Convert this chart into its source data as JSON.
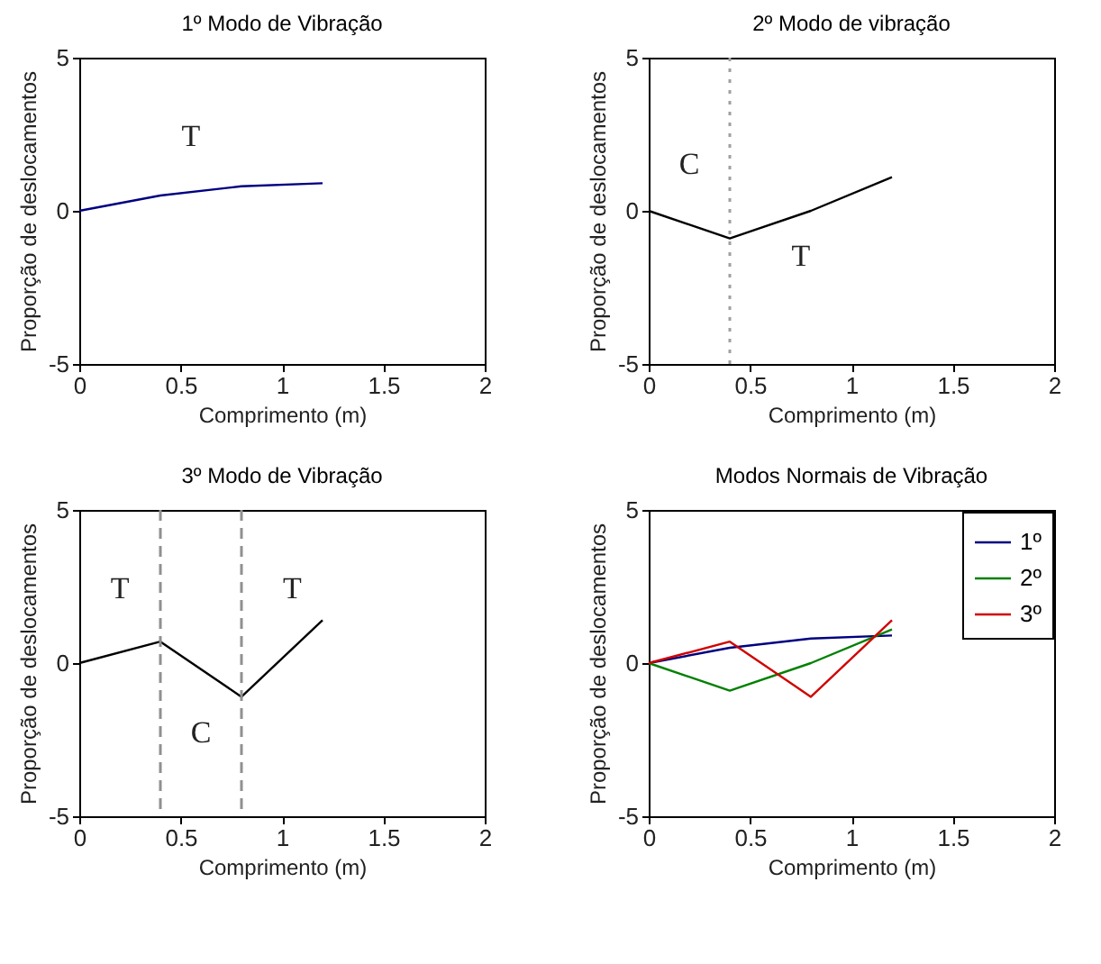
{
  "chart_data": [
    {
      "type": "line",
      "title": "1º Modo de Vibração",
      "xlabel": "Comprimento (m)",
      "ylabel": "Proporção de deslocamentos",
      "x": [
        0,
        0.4,
        0.8,
        1.2
      ],
      "series": [
        {
          "color": "#000080",
          "values": [
            0,
            0.5,
            0.8,
            0.9
          ]
        }
      ],
      "xlim": [
        0,
        2
      ],
      "xticks": [
        0,
        0.5,
        1,
        1.5,
        2
      ],
      "ylim": [
        -5,
        5
      ],
      "yticks": [
        -5,
        0,
        5
      ],
      "grid": false,
      "line_style": "solid",
      "annotations": [
        "T"
      ]
    },
    {
      "type": "line",
      "title": "2º Modo de vibração",
      "xlabel": "Comprimento (m)",
      "ylabel": "Proporção de deslocamentos",
      "x": [
        0,
        0.4,
        0.8,
        1.2
      ],
      "series": [
        {
          "color": "#000000",
          "values": [
            0,
            -0.9,
            0,
            1.1
          ]
        }
      ],
      "xlim": [
        0,
        2
      ],
      "xticks": [
        0,
        0.5,
        1,
        1.5,
        2
      ],
      "ylim": [
        -5,
        5
      ],
      "yticks": [
        -5,
        0,
        5
      ],
      "grid": false,
      "line_style": "solid",
      "ref_lines": [
        {
          "axis": "x",
          "value": 0.4,
          "color": "#a0a0a0",
          "line_style": "dotted"
        }
      ],
      "annotations": [
        "C",
        "T"
      ]
    },
    {
      "type": "line",
      "title": "3º Modo de Vibração",
      "xlabel": "Comprimento (m)",
      "ylabel": "Proporção de deslocamentos",
      "x": [
        0,
        0.4,
        0.8,
        1.2
      ],
      "series": [
        {
          "color": "#000000",
          "values": [
            0,
            0.7,
            -1.1,
            1.4
          ]
        }
      ],
      "xlim": [
        0,
        2
      ],
      "xticks": [
        0,
        0.5,
        1,
        1.5,
        2
      ],
      "ylim": [
        -5,
        5
      ],
      "yticks": [
        -5,
        0,
        5
      ],
      "grid": false,
      "line_style": "solid",
      "ref_lines": [
        {
          "axis": "x",
          "value": 0.4,
          "color": "#909090",
          "line_style": "dashed"
        },
        {
          "axis": "x",
          "value": 0.8,
          "color": "#909090",
          "line_style": "dashed"
        }
      ],
      "annotations": [
        "T",
        "T",
        "C"
      ]
    },
    {
      "type": "line",
      "title": "Modos Normais de Vibração",
      "xlabel": "Comprimento (m)",
      "ylabel": "Proporção de deslocamentos",
      "x": [
        0,
        0.4,
        0.8,
        1.2
      ],
      "series": [
        {
          "name": "1º",
          "color": "#000080",
          "values": [
            0,
            0.5,
            0.8,
            0.9
          ]
        },
        {
          "name": "2º",
          "color": "#008000",
          "values": [
            0,
            -0.9,
            0,
            1.1
          ]
        },
        {
          "name": "3º",
          "color": "#d00000",
          "values": [
            0,
            0.7,
            -1.1,
            1.4
          ]
        }
      ],
      "xlim": [
        0,
        2
      ],
      "xticks": [
        0,
        0.5,
        1,
        1.5,
        2
      ],
      "ylim": [
        -5,
        5
      ],
      "yticks": [
        -5,
        0,
        5
      ],
      "grid": false,
      "line_style": "solid",
      "legend": "top right"
    }
  ]
}
